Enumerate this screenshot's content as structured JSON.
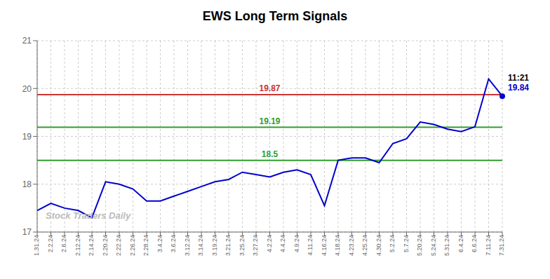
{
  "chart_data": {
    "type": "line",
    "title": "EWS Long Term Signals",
    "color": "#0000cc",
    "categories": [
      "1.31.24",
      "2.2.24",
      "2.6.24",
      "2.12.24",
      "2.14.24",
      "2.20.24",
      "2.22.24",
      "2.26.24",
      "2.28.24",
      "3.4.24",
      "3.6.24",
      "3.12.24",
      "3.14.24",
      "3.19.24",
      "3.21.24",
      "3.25.24",
      "3.27.24",
      "4.2.24",
      "4.4.24",
      "4.9.24",
      "4.11.24",
      "4.16.24",
      "4.18.24",
      "4.23.24",
      "4.25.24",
      "4.30.24",
      "5.2.24",
      "5.7.24",
      "5.20.24",
      "5.24.24",
      "5.31.24",
      "6.4.24",
      "6.6.24",
      "7.11.24",
      "7.31.24"
    ],
    "values": [
      17.45,
      17.6,
      17.5,
      17.45,
      17.3,
      18.05,
      18.0,
      17.9,
      17.65,
      17.65,
      17.75,
      17.85,
      17.95,
      18.05,
      18.1,
      18.25,
      18.2,
      18.15,
      18.25,
      18.3,
      18.2,
      17.55,
      18.5,
      18.55,
      18.55,
      18.45,
      18.85,
      18.95,
      19.3,
      19.25,
      19.15,
      19.1,
      19.2,
      20.2,
      19.84
    ],
    "ylim": [
      17,
      21
    ],
    "yticks": [
      17,
      18,
      19,
      20,
      21
    ],
    "grid": true,
    "reference_lines": [
      {
        "value": 19.87,
        "color": "#cc3333"
      },
      {
        "value": 19.19,
        "color": "#2e9e2e"
      },
      {
        "value": 18.5,
        "color": "#2e9e2e"
      }
    ],
    "annotations": [
      {
        "text": "11:21",
        "color": "#000000"
      },
      {
        "text": "19.84",
        "color": "#0000cc"
      }
    ],
    "watermark": "Stock Traders Daily"
  }
}
